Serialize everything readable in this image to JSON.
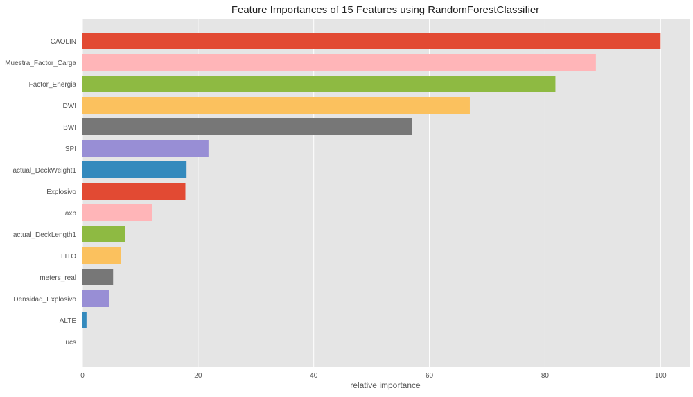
{
  "chart_data": {
    "type": "bar",
    "orientation": "horizontal",
    "title": "Feature Importances of 15 Features using RandomForestClassifier",
    "xlabel": "relative importance",
    "ylabel": "",
    "xlim": [
      0,
      105
    ],
    "xticks": [
      0,
      20,
      40,
      60,
      80,
      100
    ],
    "grid": true,
    "legend": "none",
    "categories": [
      "CAOLIN",
      "Muestra_Factor_Carga",
      "Factor_Energia",
      "DWI",
      "BWI",
      "SPI",
      "actual_DeckWeight1",
      "Explosivo",
      "axb",
      "actual_DeckLength1",
      "LITO",
      "meters_real",
      "Densidad_Explosivo",
      "ALTE",
      "ucs"
    ],
    "values": [
      100,
      88.8,
      81.8,
      67,
      57,
      21.8,
      18,
      17.8,
      12,
      7.4,
      6.6,
      5.3,
      4.6,
      0.7,
      0
    ],
    "bar_colors": [
      "#E24A33",
      "#FFB5B8",
      "#8EBA42",
      "#FBC15E",
      "#777777",
      "#988ED5",
      "#348ABD",
      "#E24A33",
      "#FFB5B8",
      "#8EBA42",
      "#FBC15E",
      "#777777",
      "#988ED5",
      "#348ABD",
      "#E24A33"
    ],
    "plot_background": "#E5E5E5",
    "grid_color": "#FFFFFF"
  }
}
